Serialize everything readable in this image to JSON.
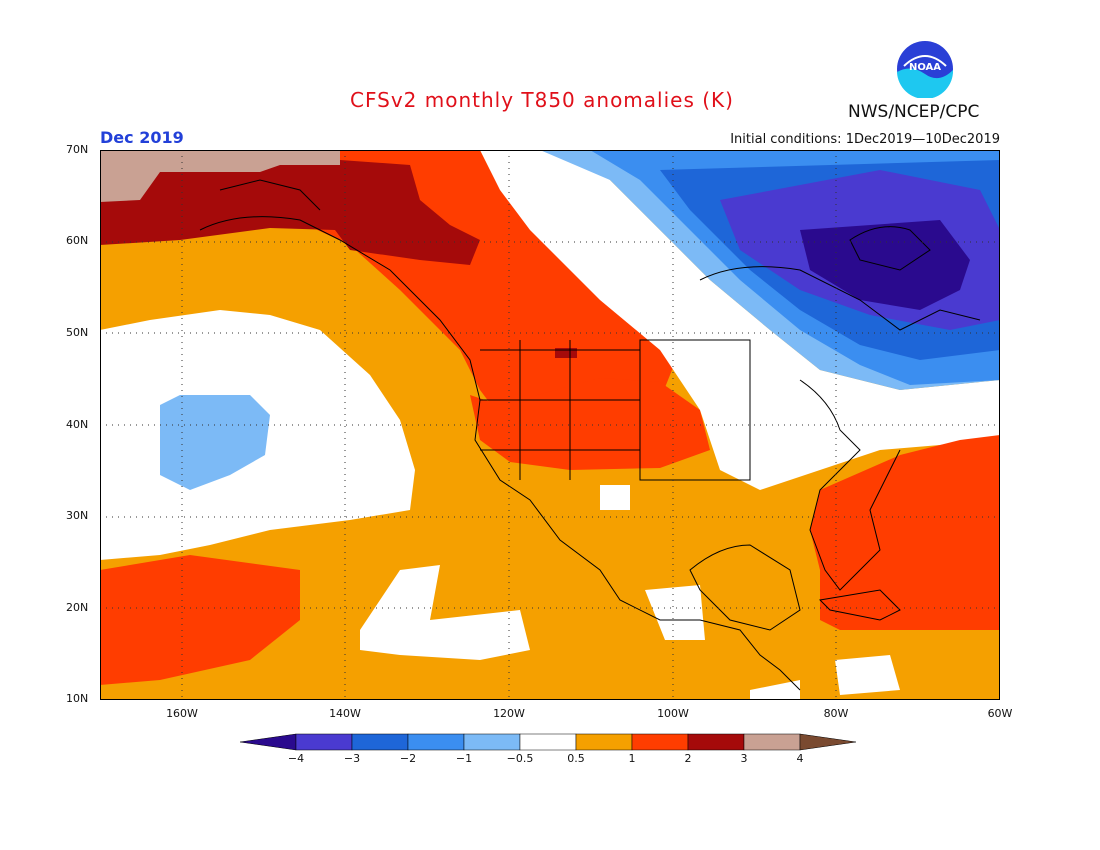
{
  "title": "CFSv2 monthly T850 anomalies (K)",
  "month": "Dec 2019",
  "initial_conditions": "Initial conditions: 1Dec2019—10Dec2019",
  "agency": "NWS/NCEP/CPC",
  "logo_text": "NOAA",
  "lat_labels": [
    "70N",
    "60N",
    "50N",
    "40N",
    "30N",
    "20N",
    "10N"
  ],
  "lon_labels": [
    "160W",
    "140W",
    "120W",
    "100W",
    "80W",
    "60W"
  ],
  "colorbar": {
    "colors": [
      "#2a0a8e",
      "#4a3ad0",
      "#1e66d8",
      "#3b8ef0",
      "#7cbaf6",
      "#ffffff",
      "#f5a000",
      "#ff3d00",
      "#a50a0a",
      "#c9a193",
      "#7a4a30"
    ],
    "labels": [
      "−4",
      "−3",
      "−2",
      "−1",
      "−0.5",
      "0.5",
      "1",
      "2",
      "3",
      "4"
    ]
  },
  "palette": {
    "deep_red": "#a50a0a",
    "red": "#ff3d00",
    "orange": "#f5a000",
    "white": "#ffffff",
    "light_blue": "#7cbaf6",
    "blue": "#3b8ef0",
    "mid_blue": "#1e66d8",
    "indigo": "#4a3ad0",
    "dark_indigo": "#2a0a8e",
    "tan": "#c9a193"
  }
}
